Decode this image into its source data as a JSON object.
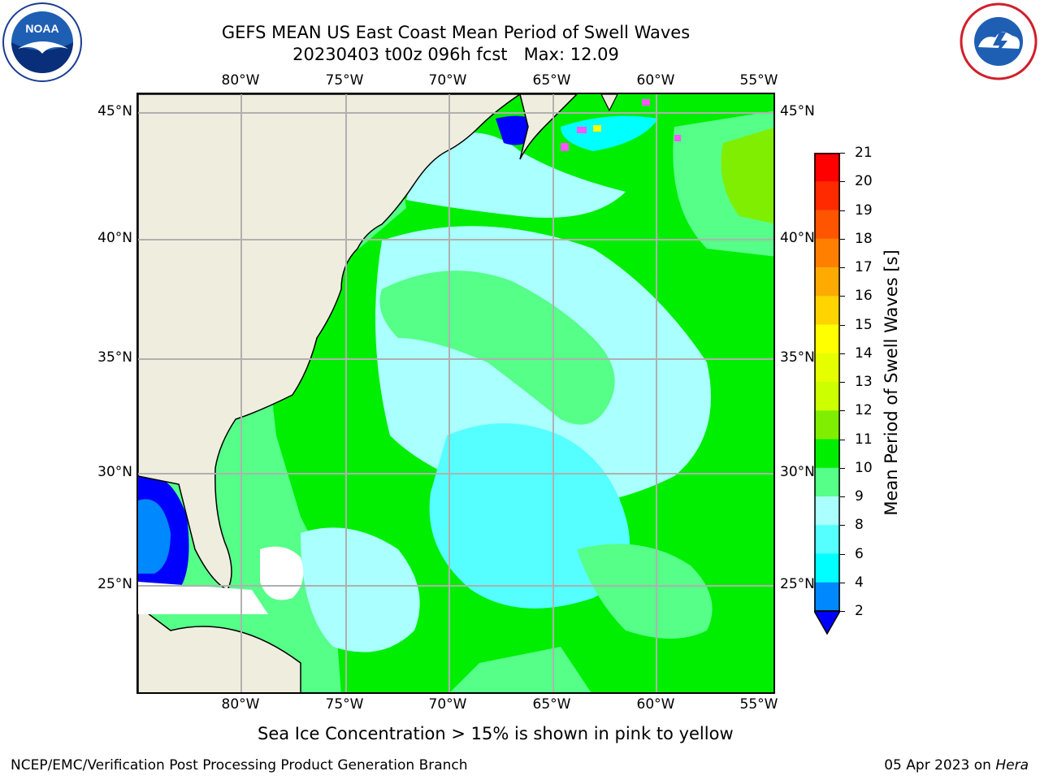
{
  "title": {
    "line1": "GEFS MEAN US East Coast Mean Period of Swell Waves",
    "line2": "20230403 t00z 096h fcst   Max: 12.09"
  },
  "map": {
    "lon_labels": [
      "80°W",
      "75°W",
      "70°W",
      "65°W",
      "60°W",
      "55°W"
    ],
    "lat_labels": [
      "45°N",
      "40°N",
      "35°N",
      "30°N",
      "25°N"
    ],
    "land_color": "#efedde",
    "grid_color": "#b0b0b0"
  },
  "colorbar": {
    "label": "Mean Period of Swell Waves [s]",
    "ticks": [
      "21",
      "20",
      "19",
      "18",
      "17",
      "16",
      "15",
      "14",
      "13",
      "12",
      "11",
      "10",
      "9",
      "8",
      "6",
      "4",
      "2"
    ],
    "colors": [
      "#ff0000",
      "#ff2a00",
      "#ff5500",
      "#ff8000",
      "#ffaa00",
      "#ffd400",
      "#ffff00",
      "#e5ff00",
      "#ccff00",
      "#80ee00",
      "#00ee00",
      "#55ff88",
      "#aaffff",
      "#55ffff",
      "#00ffff",
      "#0088ff",
      "#0000ff"
    ]
  },
  "note": "Sea Ice Concentration > 15% is shown in pink to yellow",
  "footer": {
    "left": "NCEP/EMC/Verification Post Processing Product Generation Branch",
    "right_date": "05 Apr 2023 on ",
    "right_machine": "Hera"
  },
  "logos": {
    "noaa": "NOAA",
    "nws": "NATIONAL WEATHER SERVICE"
  }
}
